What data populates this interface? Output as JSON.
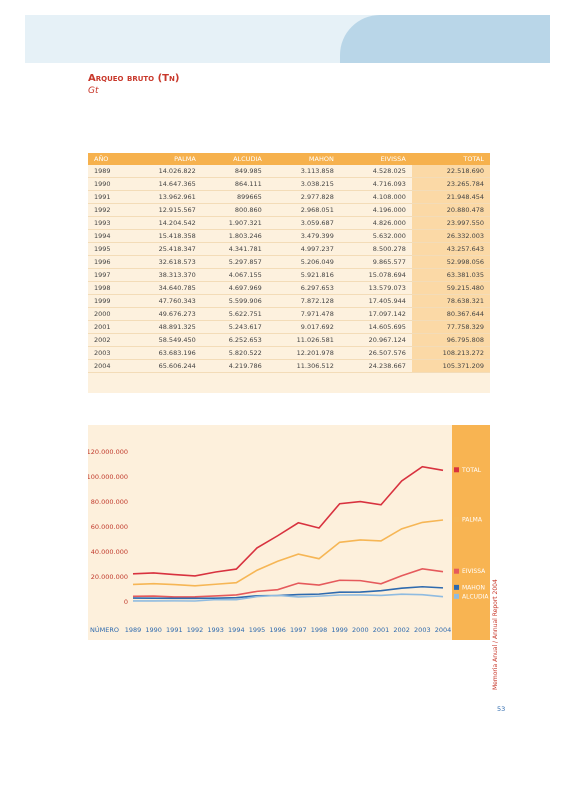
{
  "header": {
    "title": "Arqueo bruto (Tn)",
    "subtitle": "Gt"
  },
  "table": {
    "columns": [
      "AÑO",
      "PALMA",
      "ALCUDIA",
      "MAHON",
      "EIVISSA",
      "TOTAL"
    ],
    "rows": [
      [
        "1989",
        "14.026.822",
        "849.985",
        "3.113.858",
        "4.528.025",
        "22.518.690"
      ],
      [
        "1990",
        "14.647.365",
        "864.111",
        "3.038.215",
        "4.716.093",
        "23.265.784"
      ],
      [
        "1991",
        "13.962.961",
        "899665",
        "2.977.828",
        "4.108.000",
        "21.948.454"
      ],
      [
        "1992",
        "12.915.567",
        "800.860",
        "2.968.051",
        "4.196.000",
        "20.880.478"
      ],
      [
        "1993",
        "14.204.542",
        "1.907.321",
        "3.059.687",
        "4.826.000",
        "23.997.550"
      ],
      [
        "1994",
        "15.418.358",
        "1.803.246",
        "3.479.399",
        "5.632.000",
        "26.332.003"
      ],
      [
        "1995",
        "25.418.347",
        "4.341.781",
        "4.997.237",
        "8.500.278",
        "43.257.643"
      ],
      [
        "1996",
        "32.618.573",
        "5.297.857",
        "5.206.049",
        "9.865.577",
        "52.998.056"
      ],
      [
        "1997",
        "38.313.370",
        "4.067.155",
        "5.921.816",
        "15.078.694",
        "63.381.035"
      ],
      [
        "1998",
        "34.640.785",
        "4.697.969",
        "6.297.653",
        "13.579.073",
        "59.215.480"
      ],
      [
        "1999",
        "47.760.343",
        "5.599.906",
        "7.872.128",
        "17.405.944",
        "78.638.321"
      ],
      [
        "2000",
        "49.676.273",
        "5.622.751",
        "7.971.478",
        "17.097.142",
        "80.367.644"
      ],
      [
        "2001",
        "48.891.325",
        "5.243.617",
        "9.017.692",
        "14.605.695",
        "77.758.329"
      ],
      [
        "2002",
        "58.549.450",
        "6.252.653",
        "11.026.581",
        "20.967.124",
        "96.795.808"
      ],
      [
        "2003",
        "63.683.196",
        "5.820.522",
        "12.201.978",
        "26.507.576",
        "108.213.272"
      ],
      [
        "2004",
        "65.606.244",
        "4.219.786",
        "11.306.512",
        "24.238.667",
        "105.371.209"
      ]
    ]
  },
  "chart_data": {
    "type": "line",
    "x_label": "NÚMERO",
    "categories": [
      "1989",
      "1990",
      "1991",
      "1992",
      "1993",
      "1994",
      "1995",
      "1996",
      "1997",
      "1998",
      "1999",
      "2000",
      "2001",
      "2002",
      "2003",
      "2004"
    ],
    "series": [
      {
        "name": "TOTAL",
        "color": "#d8323f",
        "values": [
          22518690,
          23265784,
          21948454,
          20880478,
          23997550,
          26332003,
          43257643,
          52998056,
          63381035,
          59215480,
          78638321,
          80367644,
          77758329,
          96795808,
          108213272,
          105371209
        ]
      },
      {
        "name": "PALMA",
        "color": "#f6b655",
        "values": [
          14026822,
          14647365,
          13962961,
          12915567,
          14204542,
          15418358,
          25418347,
          32618573,
          38313370,
          34640785,
          47760343,
          49676273,
          48891325,
          58549450,
          63683196,
          65606244
        ]
      },
      {
        "name": "EIVISSA",
        "color": "#e55a5c",
        "values": [
          4528025,
          4716093,
          4108000,
          4196000,
          4826000,
          5632000,
          8500278,
          9865577,
          15078694,
          13579073,
          17405944,
          17097142,
          14605695,
          20967124,
          26507576,
          24238667
        ]
      },
      {
        "name": "MAHON",
        "color": "#2e6aae",
        "values": [
          3113858,
          3038215,
          2977828,
          2968051,
          3059687,
          3479399,
          4997237,
          5206049,
          5921816,
          6297653,
          7872128,
          7971478,
          9017692,
          11026581,
          12201978,
          11306512
        ]
      },
      {
        "name": "ALCUDIA",
        "color": "#8fbbe0",
        "values": [
          849985,
          864111,
          899665,
          800860,
          1907321,
          1803246,
          4341781,
          5297857,
          4067155,
          4697969,
          5599906,
          5622751,
          5243617,
          6252653,
          5820522,
          4219786
        ]
      }
    ],
    "ylim": [
      0,
      120000000
    ],
    "yticks": [
      {
        "value": 0,
        "label": "0"
      },
      {
        "value": 20000000,
        "label": "20.000.000"
      },
      {
        "value": 40000000,
        "label": "40.000.000"
      },
      {
        "value": 60000000,
        "label": "60.000.000"
      },
      {
        "value": 80000000,
        "label": "80.000.000"
      },
      {
        "value": 100000000,
        "label": "100.000.000"
      },
      {
        "value": 120000000,
        "label": "120.000.000"
      }
    ],
    "grid": false
  },
  "footer": {
    "side_text": "Memoria Anual / Annual Report 2004",
    "page_number": "53"
  }
}
